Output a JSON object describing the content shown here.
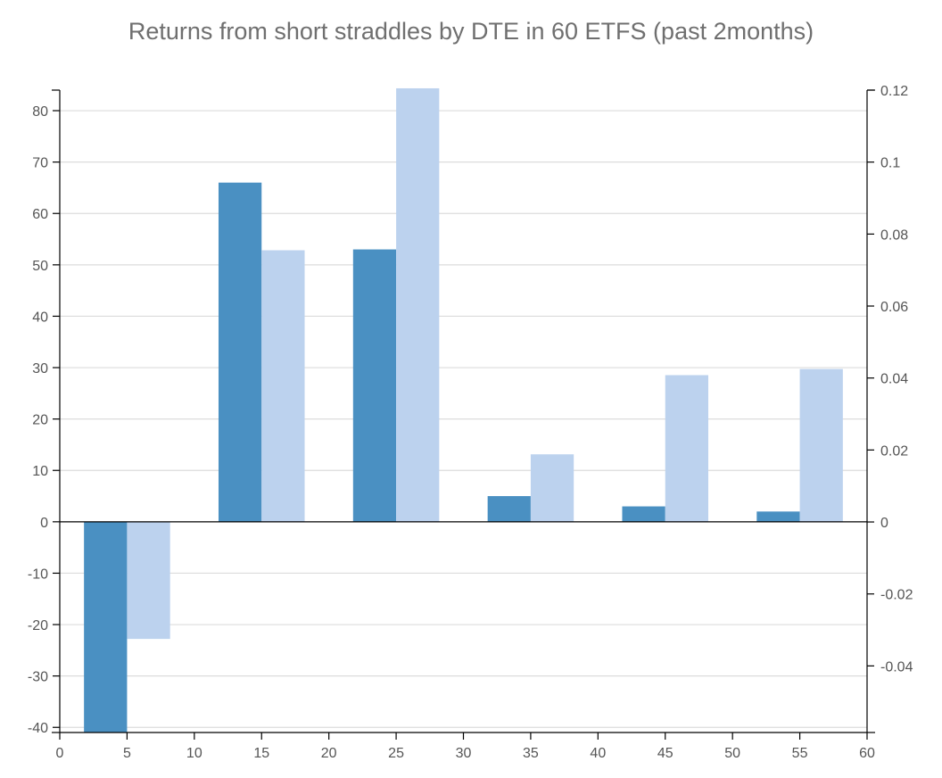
{
  "chart_data": {
    "type": "bar",
    "title": "Returns from short straddles by DTE in 60 ETFS (past 2months)",
    "xlabel": "",
    "ylabel": "",
    "x_ticks": [
      0,
      5,
      10,
      15,
      20,
      25,
      30,
      35,
      40,
      45,
      50,
      55,
      60
    ],
    "xlim": [
      0,
      60
    ],
    "categories": [
      5,
      15,
      25,
      35,
      45,
      55
    ],
    "series": [
      {
        "axis": "left",
        "color": "#4a90c2",
        "values": [
          -41,
          66,
          53,
          5,
          3,
          2
        ]
      },
      {
        "axis": "right",
        "color": "#bcd2ee",
        "values": [
          -0.0325,
          0.0755,
          0.1205,
          0.0188,
          0.0408,
          0.0425
        ]
      }
    ],
    "y_left": {
      "lim": [
        -41,
        84
      ],
      "ticks": [
        80,
        70,
        60,
        50,
        40,
        30,
        20,
        10,
        0,
        -10,
        -20,
        -30,
        -40
      ]
    },
    "y_right": {
      "lim": [
        -0.0585,
        0.12
      ],
      "ticks": [
        0.12,
        0.1,
        0.08,
        0.06,
        0.04,
        0.02,
        0,
        -0.02,
        -0.04
      ],
      "tick_labels": [
        "0.12",
        "0.1",
        "0.08",
        "0.06",
        "0.04",
        "0.02",
        "0",
        "-0.02",
        "-0.04"
      ]
    },
    "grid": true,
    "legend": "none"
  }
}
